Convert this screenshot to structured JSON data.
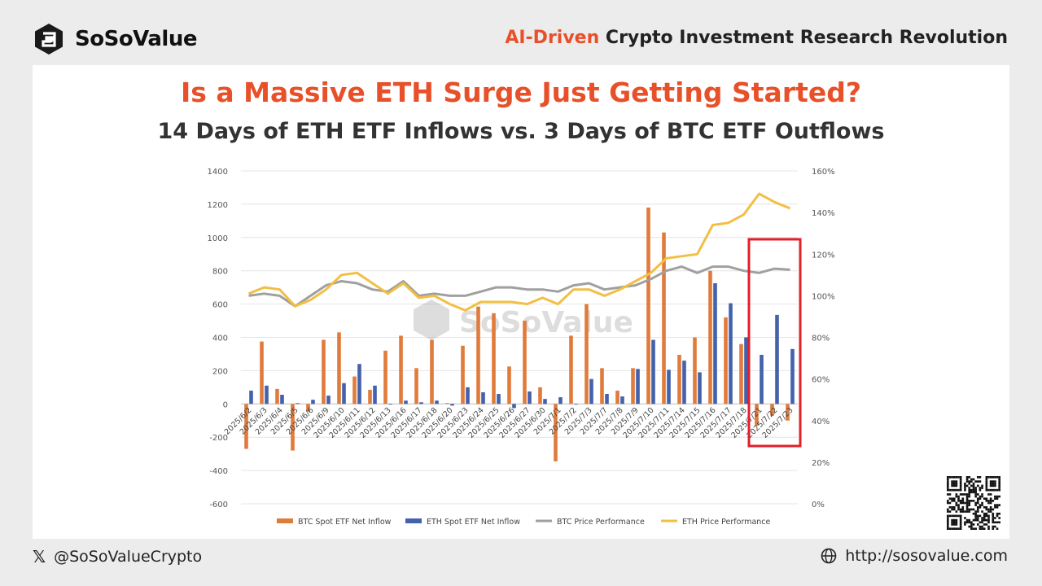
{
  "header": {
    "brand_name": "SoSoValue",
    "tagline_accent": "AI-Driven",
    "tagline_rest": " Crypto Investment Research Revolution"
  },
  "footer": {
    "handle": "@SoSoValueCrypto",
    "url": "http://sosovalue.com"
  },
  "watermark": "SoSoValue",
  "colors": {
    "accent": "#e8502a",
    "btc_bar": "#e07b3c",
    "eth_bar": "#4461ac",
    "btc_line": "#a0a0a0",
    "eth_line": "#f2bf45",
    "highlight_box": "#e0202a"
  },
  "chart_data": {
    "type": "bar",
    "title": "Is a Massive ETH Surge Just Getting Started?",
    "subtitle": "14 Days of ETH ETF Inflows vs. 3 Days of BTC ETF Outflows",
    "categories": [
      "2025/6/2",
      "2025/6/3",
      "2025/6/4",
      "2025/6/5",
      "2025/6/6",
      "2025/6/9",
      "2025/6/10",
      "2025/6/11",
      "2025/6/12",
      "2025/6/13",
      "2025/6/16",
      "2025/6/17",
      "2025/6/18",
      "2025/6/20",
      "2025/6/23",
      "2025/6/24",
      "2025/6/25",
      "2025/6/26",
      "2025/6/27",
      "2025/6/30",
      "2025/7/1",
      "2025/7/2",
      "2025/7/3",
      "2025/7/7",
      "2025/7/8",
      "2025/7/9",
      "2025/7/10",
      "2025/7/11",
      "2025/7/14",
      "2025/7/15",
      "2025/7/16",
      "2025/7/17",
      "2025/7/18",
      "2025/7/21",
      "2025/7/22",
      "2025/7/23"
    ],
    "ylim_left": [
      -600,
      1400
    ],
    "yticks_left": [
      "-600",
      "-400",
      "-200",
      "0",
      "200",
      "400",
      "600",
      "800",
      "1000",
      "1200",
      "1400"
    ],
    "ylim_right": [
      0,
      160
    ],
    "yticks_right": [
      "0%",
      "20%",
      "40%",
      "60%",
      "80%",
      "100%",
      "120%",
      "140%",
      "160%"
    ],
    "series": [
      {
        "name": "BTC Spot ETF Net Inflow",
        "kind": "bar",
        "axis": "left",
        "values": [
          -270,
          375,
          90,
          -280,
          -45,
          385,
          430,
          165,
          85,
          320,
          410,
          215,
          385,
          5,
          350,
          585,
          545,
          225,
          500,
          100,
          -345,
          410,
          600,
          215,
          80,
          215,
          1180,
          1030,
          295,
          400,
          800,
          520,
          360,
          -130,
          -70,
          -100
        ]
      },
      {
        "name": "ETH Spot ETF Net Inflow",
        "kind": "bar",
        "axis": "left",
        "values": [
          80,
          110,
          55,
          5,
          25,
          50,
          125,
          240,
          110,
          0,
          20,
          10,
          20,
          -10,
          100,
          70,
          60,
          -25,
          75,
          30,
          40,
          0,
          150,
          60,
          45,
          210,
          385,
          205,
          260,
          190,
          725,
          605,
          400,
          295,
          535,
          330
        ]
      },
      {
        "name": "BTC Price Performance",
        "kind": "line",
        "axis": "right",
        "values": [
          100,
          101,
          100,
          95,
          100,
          105,
          107,
          106,
          103,
          102,
          107,
          100,
          101,
          100,
          100,
          102,
          104,
          104,
          103,
          103,
          102,
          105,
          106,
          103,
          104,
          105,
          108,
          112,
          114,
          111,
          114,
          114,
          112,
          111,
          113,
          112.5
        ]
      },
      {
        "name": "ETH Price Performance",
        "kind": "line",
        "axis": "right",
        "values": [
          101,
          104,
          103,
          95,
          98,
          103,
          110,
          111,
          106,
          101,
          106,
          99,
          100,
          96,
          93,
          97,
          97,
          97,
          96,
          99,
          96,
          103,
          103,
          100,
          103,
          107,
          111,
          118,
          119,
          120,
          134,
          135,
          139,
          149,
          145,
          142
        ]
      }
    ],
    "highlight": {
      "from_index": 33,
      "to_index": 35
    },
    "legend": "bottom"
  }
}
